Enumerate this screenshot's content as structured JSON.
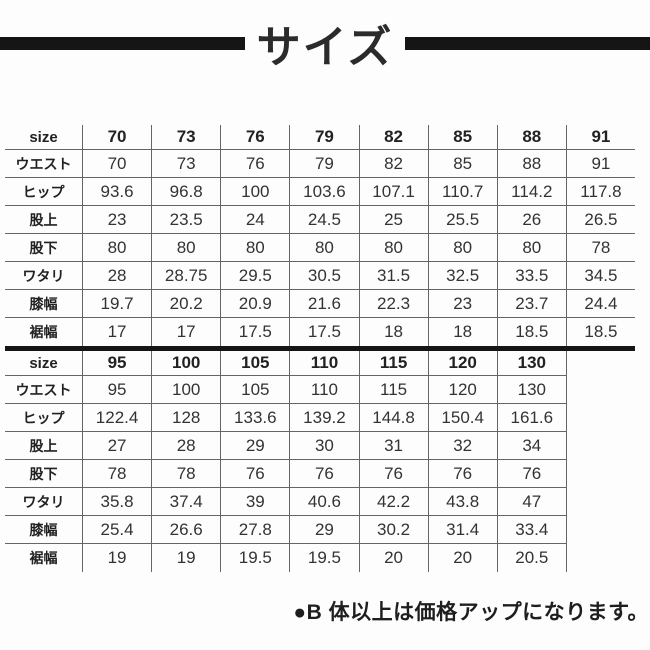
{
  "title": "サイズ",
  "note": "●B 体以上は価格アップになります。",
  "colors": {
    "ink": "#151515",
    "border": "#666666",
    "text": "#333333",
    "bg": "#fdfdfd"
  },
  "tables": [
    {
      "header_label": "size",
      "sizes": [
        "70",
        "73",
        "76",
        "79",
        "82",
        "85",
        "88",
        "91"
      ],
      "rows": [
        {
          "label": "ウエスト",
          "values": [
            "70",
            "73",
            "76",
            "79",
            "82",
            "85",
            "88",
            "91"
          ]
        },
        {
          "label": "ヒップ",
          "values": [
            "93.6",
            "96.8",
            "100",
            "103.6",
            "107.1",
            "110.7",
            "114.2",
            "117.8"
          ]
        },
        {
          "label": "股上",
          "values": [
            "23",
            "23.5",
            "24",
            "24.5",
            "25",
            "25.5",
            "26",
            "26.5"
          ]
        },
        {
          "label": "股下",
          "values": [
            "80",
            "80",
            "80",
            "80",
            "80",
            "80",
            "80",
            "78"
          ]
        },
        {
          "label": "ワタリ",
          "values": [
            "28",
            "28.75",
            "29.5",
            "30.5",
            "31.5",
            "32.5",
            "33.5",
            "34.5"
          ]
        },
        {
          "label": "膝幅",
          "values": [
            "19.7",
            "20.2",
            "20.9",
            "21.6",
            "22.3",
            "23",
            "23.7",
            "24.4"
          ]
        },
        {
          "label": "裾幅",
          "values": [
            "17",
            "17",
            "17.5",
            "17.5",
            "18",
            "18",
            "18.5",
            "18.5"
          ]
        }
      ]
    },
    {
      "header_label": "size",
      "sizes": [
        "95",
        "100",
        "105",
        "110",
        "115",
        "120",
        "130"
      ],
      "rows": [
        {
          "label": "ウエスト",
          "values": [
            "95",
            "100",
            "105",
            "110",
            "115",
            "120",
            "130"
          ]
        },
        {
          "label": "ヒップ",
          "values": [
            "122.4",
            "128",
            "133.6",
            "139.2",
            "144.8",
            "150.4",
            "161.6"
          ]
        },
        {
          "label": "股上",
          "values": [
            "27",
            "28",
            "29",
            "30",
            "31",
            "32",
            "34"
          ]
        },
        {
          "label": "股下",
          "values": [
            "78",
            "78",
            "76",
            "76",
            "76",
            "76",
            "76"
          ]
        },
        {
          "label": "ワタリ",
          "values": [
            "35.8",
            "37.4",
            "39",
            "40.6",
            "42.2",
            "43.8",
            "47"
          ]
        },
        {
          "label": "膝幅",
          "values": [
            "25.4",
            "26.6",
            "27.8",
            "29",
            "30.2",
            "31.4",
            "33.4"
          ]
        },
        {
          "label": "裾幅",
          "values": [
            "19",
            "19",
            "19.5",
            "19.5",
            "20",
            "20",
            "20.5"
          ]
        }
      ]
    }
  ]
}
